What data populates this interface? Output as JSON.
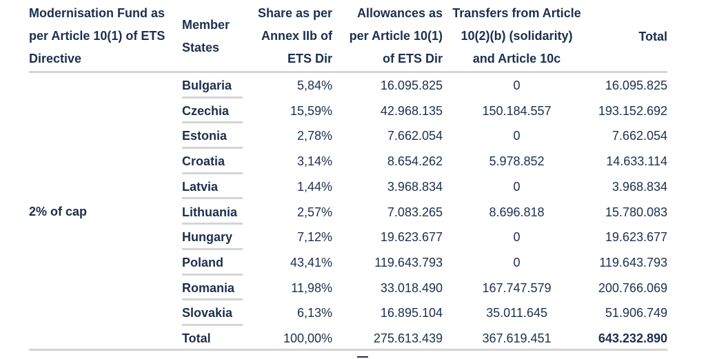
{
  "headers": {
    "fund": "Modernisation Fund as\nper Article 10(1) of ETS\nDirective",
    "member_states": "Member\nStates",
    "share": "Share as per\nAnnex IIb of\nETS Dir",
    "allowances": "Allowances as\nper Article 10(1)\nof ETS Dir",
    "transfers": "Transfers from Article\n10(2)(b) (solidarity)\nand Article 10c",
    "total": "Total"
  },
  "fund_label": "2% of cap",
  "rows": [
    {
      "state": "Bulgaria",
      "share": "5,84%",
      "allowances": "16.095.825",
      "transfers": "0",
      "total": "16.095.825"
    },
    {
      "state": "Czechia",
      "share": "15,59%",
      "allowances": "42.968.135",
      "transfers": "150.184.557",
      "total": "193.152.692"
    },
    {
      "state": "Estonia",
      "share": "2,78%",
      "allowances": "7.662.054",
      "transfers": "0",
      "total": "7.662.054"
    },
    {
      "state": "Croatia",
      "share": "3,14%",
      "allowances": "8.654.262",
      "transfers": "5.978.852",
      "total": "14.633.114"
    },
    {
      "state": "Latvia",
      "share": "1,44%",
      "allowances": "3.968.834",
      "transfers": "0",
      "total": "3.968.834"
    },
    {
      "state": "Lithuania",
      "share": "2,57%",
      "allowances": "7.083.265",
      "transfers": "8.696.818",
      "total": "15.780.083"
    },
    {
      "state": "Hungary",
      "share": "7,12%",
      "allowances": "19.623.677",
      "transfers": "0",
      "total": "19.623.677"
    },
    {
      "state": "Poland",
      "share": "43,41%",
      "allowances": "119.643.793",
      "transfers": "0",
      "total": "119.643.793"
    },
    {
      "state": "Romania",
      "share": "11,98%",
      "allowances": "33.018.490",
      "transfers": "167.747.579",
      "total": "200.766.069"
    },
    {
      "state": "Slovakia",
      "share": "6,13%",
      "allowances": "16.895.104",
      "transfers": "35.011.645",
      "total": "51.906.749"
    },
    {
      "state": "Total",
      "share": "100,00%",
      "allowances": "275.613.439",
      "transfers": "367.619.451",
      "total": "643.232.890"
    }
  ]
}
